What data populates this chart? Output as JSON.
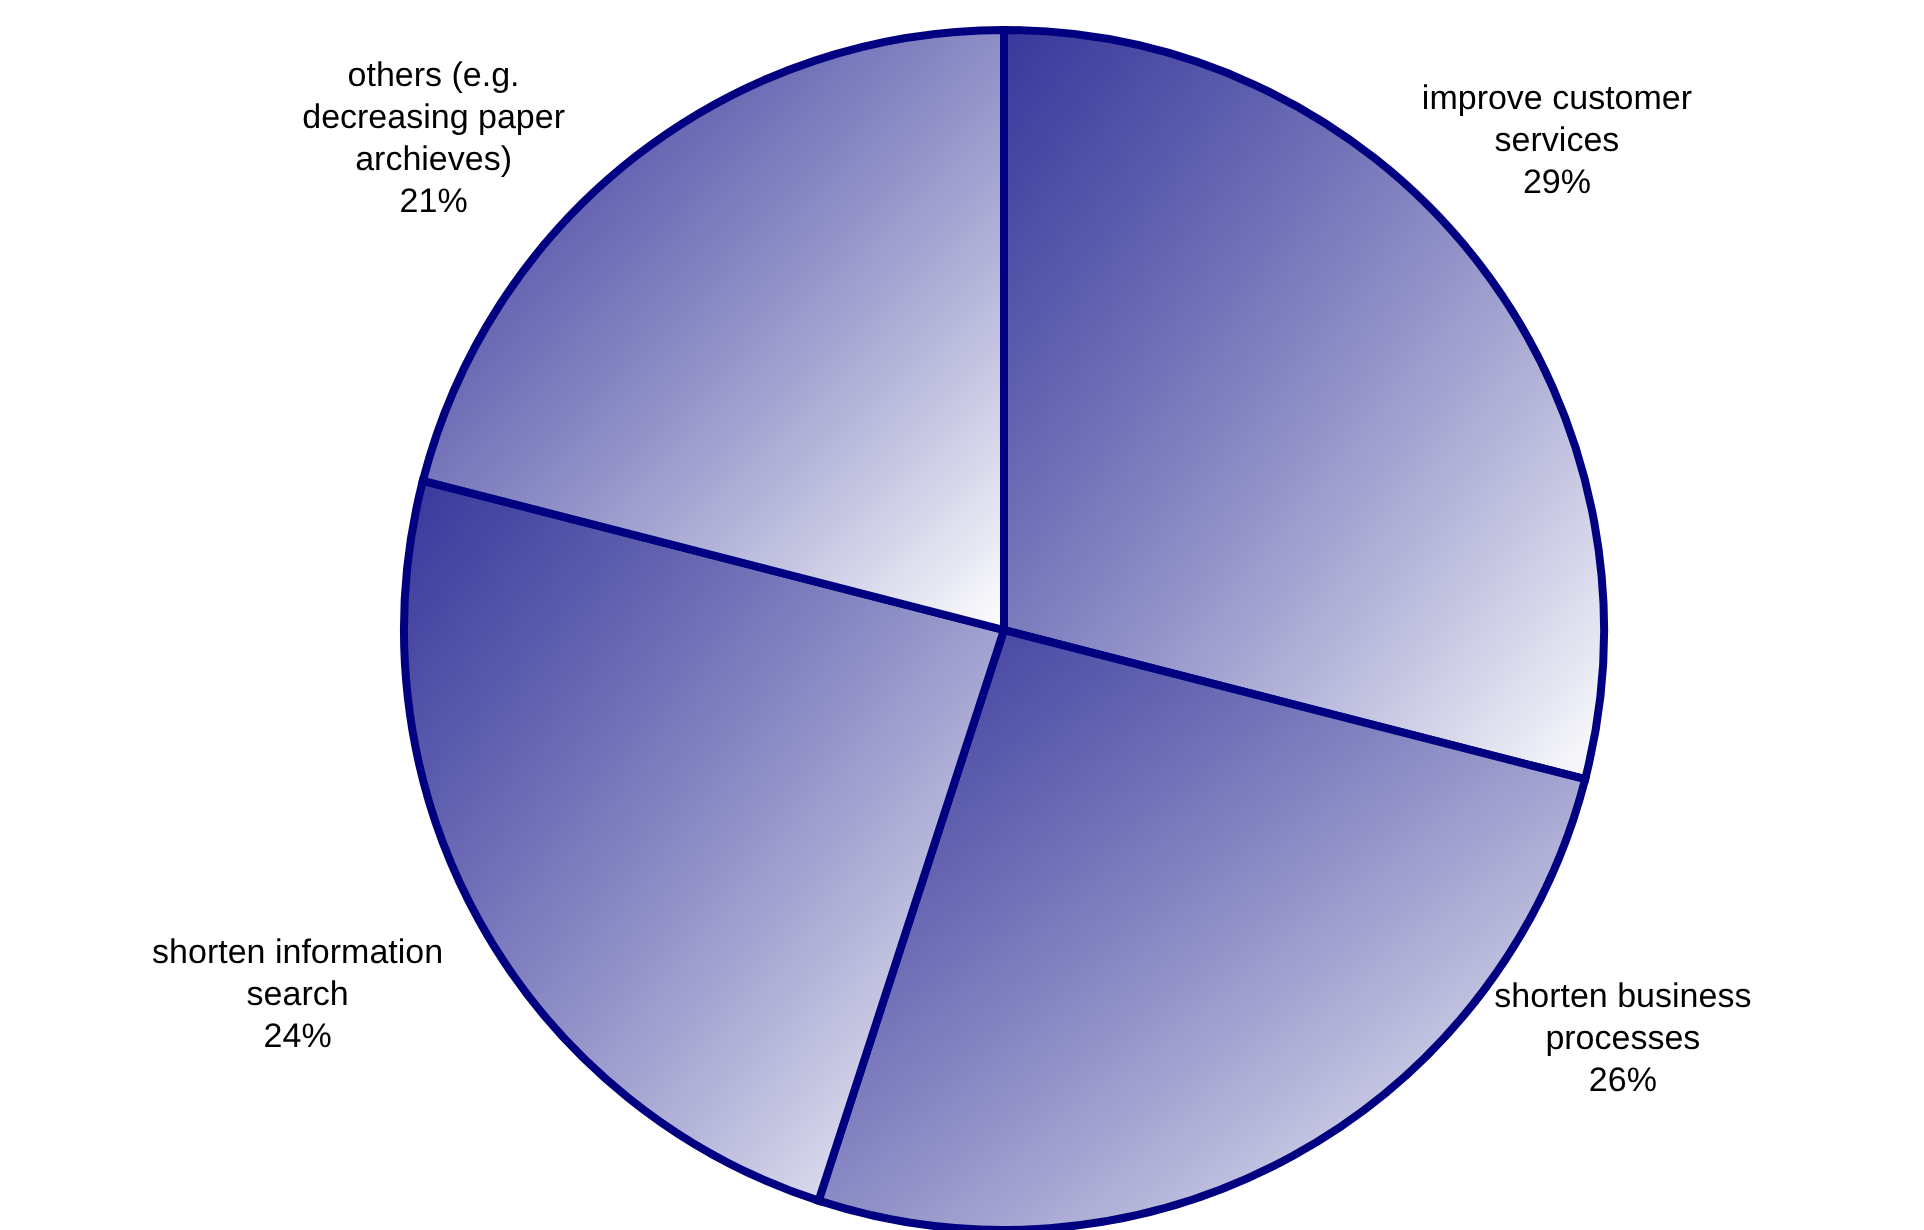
{
  "chart_data": {
    "type": "pie",
    "categories": [
      "improve customer services",
      "shorten business processes",
      "shorten information search",
      "others (e.g. decreasing paper archieves)"
    ],
    "values": [
      29,
      26,
      24,
      21
    ],
    "value_labels": [
      "29%",
      "26%",
      "24%",
      "21%"
    ],
    "colors": [
      "#000080",
      "#000080",
      "#000080",
      "#000080"
    ],
    "legend": false
  }
}
